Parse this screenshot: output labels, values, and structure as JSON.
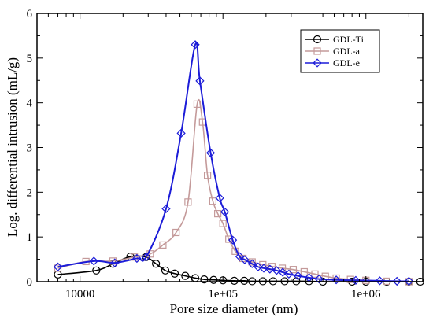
{
  "chart_data": {
    "type": "line",
    "xlabel": "Pore size diameter (nm)",
    "ylabel": "Log. differential intrusion (mL/g)",
    "xscale": "log",
    "xlim": [
      5000,
      2500000
    ],
    "ylim": [
      0,
      6
    ],
    "x_ticks": [
      {
        "value": 10000,
        "label": "10000"
      },
      {
        "value": 100000,
        "label": "1e+05"
      },
      {
        "value": 1000000,
        "label": "1e+06"
      }
    ],
    "y_ticks": [
      {
        "value": 0,
        "label": "0"
      },
      {
        "value": 1,
        "label": "1"
      },
      {
        "value": 2,
        "label": "2"
      },
      {
        "value": 3,
        "label": "3"
      },
      {
        "value": 4,
        "label": "4"
      },
      {
        "value": 5,
        "label": "5"
      },
      {
        "value": 6,
        "label": "6"
      }
    ],
    "grid": false,
    "legend_position": "top-right",
    "series": [
      {
        "name": "GDL-Ti",
        "color": "#000000",
        "marker": "circle",
        "x": [
          7000,
          13000,
          17000,
          22500,
          29000,
          34000,
          39500,
          46000,
          54500,
          64000,
          74000,
          86000,
          100000,
          120000,
          141000,
          160000,
          190000,
          224000,
          270000,
          326000,
          400000,
          500000,
          800000,
          1000000,
          1400000,
          2000000,
          2400000
        ],
        "y": [
          0.16,
          0.25,
          0.4,
          0.56,
          0.55,
          0.4,
          0.25,
          0.18,
          0.13,
          0.08,
          0.05,
          0.04,
          0.03,
          0.02,
          0.02,
          0.01,
          0.01,
          0.01,
          0.01,
          0.01,
          0.01,
          0.0,
          0.0,
          0.0,
          0.0,
          0.0,
          0.0
        ]
      },
      {
        "name": "GDL-a",
        "color": "#c49a9a",
        "marker": "square",
        "x": [
          7000,
          11000,
          17000,
          24000,
          31000,
          38000,
          47000,
          57000,
          66000,
          72000,
          78000,
          85000,
          92000,
          100000,
          110000,
          122000,
          138000,
          160000,
          190000,
          220000,
          260000,
          310000,
          370000,
          440000,
          520000,
          620000,
          780000,
          1000000,
          1400000,
          2000000
        ],
        "y": [
          0.3,
          0.45,
          0.46,
          0.55,
          0.62,
          0.82,
          1.1,
          1.78,
          3.97,
          3.57,
          2.38,
          1.8,
          1.52,
          1.3,
          0.95,
          0.68,
          0.52,
          0.44,
          0.38,
          0.34,
          0.3,
          0.27,
          0.22,
          0.17,
          0.12,
          0.08,
          0.05,
          0.03,
          0.01,
          0.0
        ]
      },
      {
        "name": "GDL-e",
        "color": "#1c1cd8",
        "marker": "diamond",
        "x": [
          7000,
          12500,
          17500,
          25000,
          29000,
          40000,
          51000,
          64000,
          69000,
          82000,
          95000,
          103000,
          117000,
          131000,
          142000,
          160000,
          176000,
          193000,
          213000,
          237000,
          262000,
          289000,
          335000,
          400000,
          470000,
          620000,
          850000,
          1250000,
          1650000,
          2000000
        ],
        "y": [
          0.33,
          0.46,
          0.42,
          0.52,
          0.55,
          1.63,
          3.32,
          5.3,
          4.49,
          2.88,
          1.87,
          1.56,
          0.93,
          0.56,
          0.49,
          0.4,
          0.33,
          0.3,
          0.28,
          0.25,
          0.21,
          0.17,
          0.13,
          0.09,
          0.06,
          0.04,
          0.03,
          0.02,
          0.01,
          0.01
        ]
      }
    ]
  }
}
